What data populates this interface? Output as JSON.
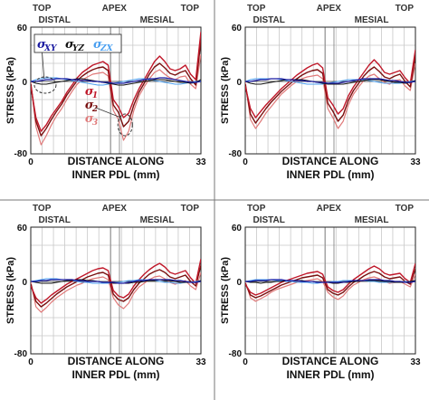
{
  "figure": {
    "y_axis_label": "STRESS (kPa)",
    "x_axis_label_line1": "DISTANCE ALONG",
    "x_axis_label_line2": "INNER PDL (mm)",
    "region_labels": [
      "TOP",
      "DISTAL",
      "APEX",
      "MESIAL",
      "TOP"
    ],
    "legend_shear": [
      {
        "symbol": "σ",
        "sub": "XY",
        "color": "#1a1aa0"
      },
      {
        "symbol": "σ",
        "sub": "YZ",
        "color": "#111111"
      },
      {
        "symbol": "σ",
        "sub": "ZX",
        "color": "#4a9ff0"
      }
    ],
    "legend_principal": [
      {
        "symbol": "σ",
        "sub": "1",
        "color": "#c0182a"
      },
      {
        "symbol": "σ",
        "sub": "2",
        "color": "#7a1010"
      },
      {
        "symbol": "σ",
        "sub": "3",
        "color": "#e07a7a"
      }
    ]
  },
  "chart_data": [
    {
      "type": "line",
      "panel": "top-left",
      "x": [
        0,
        1,
        2,
        3,
        4,
        5,
        6,
        7,
        8,
        9,
        10,
        11,
        12,
        13,
        14,
        15,
        16,
        17,
        18,
        19,
        20,
        21,
        22,
        23,
        24,
        25,
        26,
        27,
        28,
        29,
        30,
        31,
        32,
        33
      ],
      "xlim": [
        0,
        33
      ],
      "ylim": [
        -80,
        60
      ],
      "xticks": [
        0,
        33
      ],
      "yticks": [
        60,
        0,
        -80
      ],
      "series": [
        {
          "name": "σ1",
          "values": [
            -5,
            -40,
            -55,
            -48,
            -38,
            -30,
            -22,
            -12,
            -4,
            4,
            10,
            14,
            18,
            20,
            22,
            18,
            -20,
            -28,
            -40,
            -35,
            -20,
            -8,
            2,
            12,
            22,
            28,
            22,
            14,
            12,
            14,
            18,
            8,
            2,
            55
          ]
        },
        {
          "name": "σ2",
          "values": [
            -3,
            -44,
            -60,
            -52,
            -42,
            -33,
            -25,
            -15,
            -7,
            1,
            6,
            10,
            13,
            15,
            16,
            12,
            -26,
            -34,
            -50,
            -44,
            -26,
            -12,
            -2,
            8,
            16,
            20,
            15,
            9,
            7,
            10,
            12,
            3,
            -4,
            45
          ]
        },
        {
          "name": "σ3",
          "values": [
            0,
            -50,
            -70,
            -60,
            -48,
            -38,
            -30,
            -20,
            -11,
            -3,
            2,
            5,
            8,
            9,
            10,
            6,
            -32,
            -42,
            -65,
            -55,
            -32,
            -16,
            -6,
            3,
            10,
            13,
            8,
            4,
            2,
            5,
            6,
            -3,
            -8,
            30
          ]
        },
        {
          "name": "σXY",
          "values": [
            0,
            0,
            1,
            2,
            2,
            3,
            3,
            3,
            2,
            2,
            1,
            1,
            0,
            0,
            -1,
            -1,
            -2,
            -2,
            -2,
            -1,
            0,
            1,
            2,
            3,
            3,
            4,
            4,
            3,
            2,
            1,
            0,
            -1,
            -1,
            0
          ]
        },
        {
          "name": "σYZ",
          "values": [
            0,
            -2,
            -3,
            -3,
            -2,
            -1,
            0,
            1,
            2,
            3,
            3,
            2,
            1,
            0,
            -1,
            -2,
            -3,
            -4,
            -4,
            -3,
            -2,
            -1,
            0,
            1,
            2,
            2,
            2,
            1,
            0,
            -1,
            -1,
            -2,
            -1,
            2
          ]
        },
        {
          "name": "σZX",
          "values": [
            0,
            2,
            3,
            4,
            4,
            4,
            3,
            2,
            1,
            0,
            -1,
            -2,
            -3,
            -4,
            -4,
            -3,
            -2,
            -1,
            0,
            1,
            2,
            3,
            3,
            2,
            1,
            0,
            -1,
            -2,
            -3,
            -3,
            -2,
            -1,
            0,
            1
          ]
        }
      ]
    },
    {
      "type": "line",
      "panel": "top-right",
      "x": [
        0,
        1,
        2,
        3,
        4,
        5,
        6,
        7,
        8,
        9,
        10,
        11,
        12,
        13,
        14,
        15,
        16,
        17,
        18,
        19,
        20,
        21,
        22,
        23,
        24,
        25,
        26,
        27,
        28,
        29,
        30,
        31,
        32,
        33
      ],
      "xlim": [
        0,
        33
      ],
      "ylim": [
        -80,
        60
      ],
      "xticks": [
        0,
        33
      ],
      "yticks": [
        60,
        0,
        -80
      ],
      "series": [
        {
          "name": "σ1",
          "values": [
            -5,
            -30,
            -40,
            -33,
            -26,
            -20,
            -14,
            -8,
            -3,
            2,
            7,
            11,
            15,
            18,
            20,
            15,
            -18,
            -26,
            -36,
            -30,
            -16,
            -6,
            2,
            10,
            18,
            24,
            18,
            10,
            8,
            10,
            12,
            4,
            -2,
            35
          ]
        },
        {
          "name": "σ2",
          "values": [
            -3,
            -36,
            -46,
            -38,
            -30,
            -23,
            -17,
            -11,
            -6,
            -1,
            3,
            7,
            10,
            12,
            13,
            9,
            -24,
            -33,
            -44,
            -37,
            -21,
            -10,
            -2,
            6,
            12,
            16,
            11,
            5,
            3,
            6,
            8,
            0,
            -6,
            28
          ]
        },
        {
          "name": "σ3",
          "values": [
            0,
            -42,
            -52,
            -44,
            -35,
            -28,
            -21,
            -14,
            -9,
            -4,
            0,
            3,
            5,
            6,
            7,
            3,
            -30,
            -40,
            -52,
            -44,
            -26,
            -14,
            -6,
            1,
            6,
            8,
            3,
            -1,
            -3,
            1,
            2,
            -5,
            -10,
            20
          ]
        },
        {
          "name": "σXY",
          "values": [
            0,
            0,
            1,
            2,
            2,
            3,
            3,
            3,
            2,
            2,
            1,
            1,
            0,
            0,
            -1,
            -1,
            -2,
            -2,
            -2,
            -1,
            0,
            1,
            2,
            3,
            3,
            3,
            3,
            2,
            1,
            1,
            0,
            -1,
            -1,
            0
          ]
        },
        {
          "name": "σYZ",
          "values": [
            0,
            -2,
            -3,
            -3,
            -2,
            -1,
            0,
            1,
            2,
            2,
            2,
            2,
            1,
            0,
            -1,
            -2,
            -3,
            -3,
            -3,
            -3,
            -2,
            -1,
            0,
            1,
            2,
            2,
            2,
            1,
            0,
            -1,
            -1,
            -2,
            -1,
            1
          ]
        },
        {
          "name": "σZX",
          "values": [
            0,
            2,
            3,
            3,
            3,
            3,
            3,
            2,
            1,
            0,
            -1,
            -2,
            -3,
            -3,
            -3,
            -3,
            -2,
            -1,
            0,
            1,
            2,
            2,
            2,
            2,
            1,
            0,
            -1,
            -2,
            -2,
            -2,
            -2,
            -1,
            0,
            1
          ]
        }
      ]
    },
    {
      "type": "line",
      "panel": "bottom-left",
      "x": [
        0,
        1,
        2,
        3,
        4,
        5,
        6,
        7,
        8,
        9,
        10,
        11,
        12,
        13,
        14,
        15,
        16,
        17,
        18,
        19,
        20,
        21,
        22,
        23,
        24,
        25,
        26,
        27,
        28,
        29,
        30,
        31,
        32,
        33
      ],
      "xlim": [
        0,
        33
      ],
      "ylim": [
        -80,
        60
      ],
      "xticks": [
        0,
        33
      ],
      "yticks": [
        60,
        0,
        -80
      ],
      "series": [
        {
          "name": "σ1",
          "values": [
            -5,
            -18,
            -24,
            -20,
            -15,
            -11,
            -7,
            -3,
            0,
            3,
            6,
            9,
            12,
            14,
            15,
            12,
            -10,
            -16,
            -18,
            -14,
            -5,
            2,
            8,
            13,
            17,
            20,
            16,
            10,
            8,
            10,
            12,
            4,
            -2,
            25
          ]
        },
        {
          "name": "σ2",
          "values": [
            -3,
            -22,
            -28,
            -24,
            -19,
            -14,
            -10,
            -6,
            -3,
            0,
            2,
            5,
            7,
            9,
            10,
            7,
            -14,
            -20,
            -22,
            -18,
            -9,
            -2,
            3,
            8,
            11,
            13,
            10,
            5,
            3,
            5,
            7,
            0,
            -5,
            18
          ]
        },
        {
          "name": "σ3",
          "values": [
            0,
            -28,
            -34,
            -29,
            -23,
            -18,
            -14,
            -10,
            -7,
            -4,
            -2,
            1,
            3,
            4,
            5,
            2,
            -18,
            -26,
            -30,
            -24,
            -13,
            -6,
            -2,
            2,
            5,
            6,
            3,
            -1,
            -3,
            -1,
            1,
            -5,
            -9,
            10
          ]
        },
        {
          "name": "σXY",
          "values": [
            0,
            0,
            1,
            1,
            2,
            2,
            2,
            2,
            2,
            1,
            1,
            0,
            0,
            0,
            -1,
            -1,
            -1,
            -2,
            -2,
            -1,
            0,
            1,
            1,
            2,
            2,
            2,
            2,
            2,
            1,
            1,
            0,
            -1,
            -1,
            0
          ]
        },
        {
          "name": "σYZ",
          "values": [
            0,
            -1,
            -2,
            -2,
            -2,
            -1,
            0,
            1,
            1,
            2,
            2,
            1,
            1,
            0,
            -1,
            -1,
            -2,
            -2,
            -2,
            -2,
            -1,
            -1,
            0,
            1,
            1,
            2,
            1,
            1,
            0,
            -1,
            -1,
            -1,
            -1,
            1
          ]
        },
        {
          "name": "σZX",
          "values": [
            0,
            1,
            2,
            3,
            3,
            3,
            2,
            2,
            1,
            0,
            -1,
            -1,
            -2,
            -2,
            -2,
            -2,
            -1,
            -1,
            0,
            1,
            1,
            2,
            2,
            1,
            1,
            0,
            -1,
            -1,
            -2,
            -2,
            -1,
            -1,
            0,
            1
          ]
        }
      ]
    },
    {
      "type": "line",
      "panel": "bottom-right",
      "x": [
        0,
        1,
        2,
        3,
        4,
        5,
        6,
        7,
        8,
        9,
        10,
        11,
        12,
        13,
        14,
        15,
        16,
        17,
        18,
        19,
        20,
        21,
        22,
        23,
        24,
        25,
        26,
        27,
        28,
        29,
        30,
        31,
        32,
        33
      ],
      "xlim": [
        0,
        33
      ],
      "ylim": [
        -80,
        60
      ],
      "xticks": [
        0,
        33
      ],
      "yticks": [
        60,
        0,
        -80
      ],
      "series": [
        {
          "name": "σ1",
          "values": [
            -3,
            -12,
            -15,
            -13,
            -10,
            -7,
            -4,
            -1,
            1,
            3,
            5,
            7,
            9,
            10,
            11,
            8,
            -6,
            -10,
            -12,
            -9,
            -3,
            2,
            6,
            10,
            14,
            17,
            14,
            9,
            7,
            8,
            9,
            3,
            -1,
            20
          ]
        },
        {
          "name": "σ2",
          "values": [
            -2,
            -15,
            -18,
            -16,
            -13,
            -10,
            -7,
            -4,
            -2,
            0,
            2,
            4,
            5,
            6,
            7,
            4,
            -9,
            -13,
            -15,
            -12,
            -6,
            -1,
            2,
            6,
            9,
            11,
            9,
            5,
            3,
            4,
            5,
            0,
            -3,
            14
          ]
        },
        {
          "name": "σ3",
          "values": [
            0,
            -18,
            -22,
            -19,
            -16,
            -12,
            -9,
            -7,
            -5,
            -3,
            -1,
            0,
            1,
            2,
            3,
            0,
            -12,
            -17,
            -20,
            -16,
            -9,
            -4,
            -1,
            2,
            4,
            5,
            3,
            0,
            -2,
            -1,
            0,
            -3,
            -6,
            8
          ]
        },
        {
          "name": "σXY",
          "values": [
            0,
            0,
            1,
            1,
            1,
            2,
            2,
            2,
            1,
            1,
            1,
            0,
            0,
            0,
            -1,
            -1,
            -1,
            -1,
            -1,
            -1,
            0,
            1,
            1,
            1,
            2,
            2,
            2,
            1,
            1,
            0,
            0,
            -1,
            -1,
            0
          ]
        },
        {
          "name": "σYZ",
          "values": [
            0,
            -1,
            -1,
            -2,
            -1,
            -1,
            0,
            0,
            1,
            1,
            1,
            1,
            0,
            0,
            -1,
            -1,
            -1,
            -2,
            -2,
            -1,
            -1,
            0,
            0,
            1,
            1,
            1,
            1,
            0,
            0,
            -1,
            -1,
            -1,
            0,
            1
          ]
        },
        {
          "name": "σZX",
          "values": [
            0,
            1,
            2,
            2,
            2,
            2,
            1,
            1,
            0,
            0,
            -1,
            -1,
            -1,
            -2,
            -2,
            -1,
            -1,
            0,
            0,
            1,
            1,
            1,
            1,
            1,
            0,
            0,
            -1,
            -1,
            -1,
            -1,
            -1,
            0,
            0,
            1
          ]
        }
      ]
    }
  ]
}
